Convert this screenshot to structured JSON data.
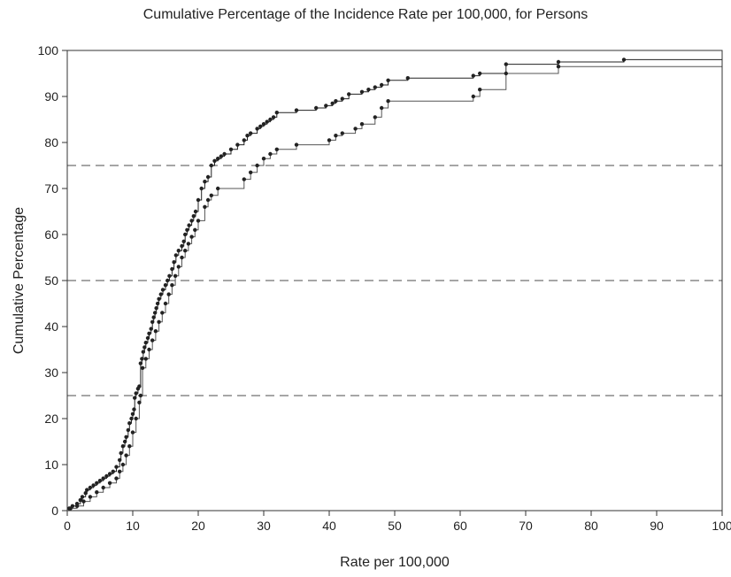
{
  "chart_data": {
    "type": "line",
    "title": "Cumulative Percentage of the Incidence Rate per 100,000, for Persons",
    "xlabel": "Rate per 100,000",
    "ylabel": "Cumulative Percentage",
    "xlim": [
      0,
      100
    ],
    "ylim": [
      0,
      100
    ],
    "x_ticks": [
      "0",
      "10",
      "20",
      "30",
      "40",
      "50",
      "60",
      "70",
      "80",
      "90",
      "100"
    ],
    "y_ticks": [
      "0",
      "10",
      "20",
      "30",
      "40",
      "50",
      "60",
      "70",
      "80",
      "90",
      "100"
    ],
    "grid": false,
    "reference_lines": [
      {
        "y": 25,
        "style": "dashed",
        "color": "#888888"
      },
      {
        "y": 50,
        "style": "dashed",
        "color": "#888888"
      },
      {
        "y": 75,
        "style": "dashed",
        "color": "#888888"
      }
    ],
    "series": [
      {
        "color": "#222222",
        "marker": "dot",
        "points": [
          [
            0.3,
            0.5
          ],
          [
            0.8,
            1.0
          ],
          [
            1.5,
            1.5
          ],
          [
            2.0,
            2.3
          ],
          [
            2.3,
            3.0
          ],
          [
            2.8,
            3.8
          ],
          [
            3.0,
            4.5
          ],
          [
            3.5,
            5.0
          ],
          [
            4.0,
            5.5
          ],
          [
            4.5,
            6.0
          ],
          [
            5.0,
            6.5
          ],
          [
            5.5,
            7.0
          ],
          [
            6.0,
            7.5
          ],
          [
            6.5,
            8.0
          ],
          [
            7.0,
            8.5
          ],
          [
            7.5,
            9.5
          ],
          [
            8.0,
            11.0
          ],
          [
            8.2,
            12.5
          ],
          [
            8.5,
            14.0
          ],
          [
            8.8,
            15.0
          ],
          [
            9.0,
            16.0
          ],
          [
            9.3,
            17.5
          ],
          [
            9.5,
            19.0
          ],
          [
            9.8,
            20.0
          ],
          [
            10.0,
            21.0
          ],
          [
            10.2,
            22.0
          ],
          [
            10.3,
            24.5
          ],
          [
            10.5,
            25.5
          ],
          [
            10.8,
            26.5
          ],
          [
            11.0,
            27.0
          ],
          [
            11.2,
            32.0
          ],
          [
            11.4,
            33.0
          ],
          [
            11.6,
            34.5
          ],
          [
            11.8,
            35.5
          ],
          [
            12.0,
            36.5
          ],
          [
            12.3,
            37.5
          ],
          [
            12.5,
            38.5
          ],
          [
            12.8,
            39.5
          ],
          [
            13.0,
            41.0
          ],
          [
            13.2,
            42.0
          ],
          [
            13.4,
            43.0
          ],
          [
            13.6,
            44.0
          ],
          [
            13.8,
            45.0
          ],
          [
            14.0,
            46.0
          ],
          [
            14.3,
            47.0
          ],
          [
            14.6,
            48.0
          ],
          [
            15.0,
            49.0
          ],
          [
            15.3,
            50.0
          ],
          [
            15.6,
            51.0
          ],
          [
            16.0,
            52.5
          ],
          [
            16.3,
            54.0
          ],
          [
            16.6,
            55.5
          ],
          [
            17.0,
            56.5
          ],
          [
            17.5,
            57.5
          ],
          [
            17.8,
            58.5
          ],
          [
            18.0,
            60.0
          ],
          [
            18.3,
            61.0
          ],
          [
            18.6,
            62.0
          ],
          [
            19.0,
            63.0
          ],
          [
            19.3,
            64.0
          ],
          [
            19.6,
            65.0
          ],
          [
            20.0,
            67.5
          ],
          [
            20.5,
            70.0
          ],
          [
            21.0,
            71.5
          ],
          [
            21.5,
            72.5
          ],
          [
            22.0,
            75.0
          ],
          [
            22.5,
            76.0
          ],
          [
            23.0,
            76.5
          ],
          [
            23.5,
            77.0
          ],
          [
            24.0,
            77.5
          ],
          [
            25.0,
            78.5
          ],
          [
            26.0,
            79.5
          ],
          [
            27.0,
            80.5
          ],
          [
            27.5,
            81.5
          ],
          [
            28.0,
            82.0
          ],
          [
            29.0,
            83.0
          ],
          [
            29.5,
            83.5
          ],
          [
            30.0,
            84.0
          ],
          [
            30.5,
            84.5
          ],
          [
            31.0,
            85.0
          ],
          [
            31.5,
            85.5
          ],
          [
            32.0,
            86.5
          ],
          [
            35.0,
            87.0
          ],
          [
            38.0,
            87.5
          ],
          [
            39.5,
            88.0
          ],
          [
            40.5,
            88.5
          ],
          [
            41.0,
            89.0
          ],
          [
            42.0,
            89.5
          ],
          [
            43.0,
            90.5
          ],
          [
            45.0,
            91.0
          ],
          [
            46.0,
            91.5
          ],
          [
            47.0,
            92.0
          ],
          [
            48.0,
            92.5
          ],
          [
            49.0,
            93.5
          ],
          [
            52.0,
            94.0
          ],
          [
            62.0,
            94.5
          ],
          [
            63.0,
            95.0
          ],
          [
            67.0,
            97.0
          ],
          [
            75.0,
            97.5
          ],
          [
            85.0,
            98.0
          ],
          [
            100.0,
            98.0
          ]
        ]
      },
      {
        "color": "#555555",
        "marker": "dot",
        "points": [
          [
            0.5,
            0.5
          ],
          [
            1.5,
            1.0
          ],
          [
            2.5,
            2.0
          ],
          [
            3.5,
            3.0
          ],
          [
            4.5,
            4.0
          ],
          [
            5.5,
            5.0
          ],
          [
            6.5,
            6.0
          ],
          [
            7.5,
            7.0
          ],
          [
            8.0,
            8.5
          ],
          [
            8.5,
            10.0
          ],
          [
            9.0,
            12.0
          ],
          [
            9.5,
            14.0
          ],
          [
            10.0,
            17.0
          ],
          [
            10.5,
            20.0
          ],
          [
            11.0,
            23.5
          ],
          [
            11.2,
            25.0
          ],
          [
            11.5,
            31.0
          ],
          [
            12.0,
            33.0
          ],
          [
            12.5,
            35.0
          ],
          [
            13.0,
            37.0
          ],
          [
            13.5,
            39.0
          ],
          [
            14.0,
            41.0
          ],
          [
            14.5,
            43.0
          ],
          [
            15.0,
            45.0
          ],
          [
            15.5,
            47.0
          ],
          [
            16.0,
            49.0
          ],
          [
            16.5,
            51.0
          ],
          [
            17.0,
            53.0
          ],
          [
            17.5,
            55.0
          ],
          [
            18.0,
            56.5
          ],
          [
            18.5,
            58.0
          ],
          [
            19.0,
            59.5
          ],
          [
            19.5,
            61.0
          ],
          [
            20.0,
            63.0
          ],
          [
            21.0,
            66.0
          ],
          [
            21.5,
            67.5
          ],
          [
            22.0,
            68.5
          ],
          [
            23.0,
            70.0
          ],
          [
            27.0,
            72.0
          ],
          [
            28.0,
            73.5
          ],
          [
            29.0,
            75.0
          ],
          [
            30.0,
            76.5
          ],
          [
            31.0,
            77.5
          ],
          [
            32.0,
            78.5
          ],
          [
            35.0,
            79.5
          ],
          [
            40.0,
            80.5
          ],
          [
            41.0,
            81.5
          ],
          [
            42.0,
            82.0
          ],
          [
            44.0,
            83.0
          ],
          [
            45.0,
            84.0
          ],
          [
            47.0,
            85.5
          ],
          [
            48.0,
            87.5
          ],
          [
            49.0,
            89.0
          ],
          [
            62.0,
            90.0
          ],
          [
            63.0,
            91.5
          ],
          [
            67.0,
            95.0
          ],
          [
            75.0,
            96.5
          ],
          [
            100.0,
            96.5
          ]
        ]
      }
    ]
  }
}
